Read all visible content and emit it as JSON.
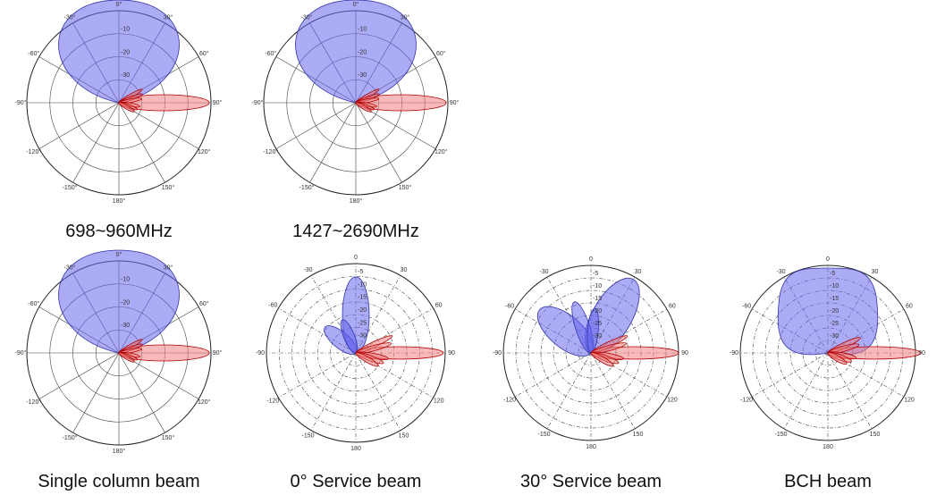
{
  "plots": [
    {
      "caption": "698~960MHz",
      "angle_labels": [
        "0°",
        "30°",
        "60°",
        "90°",
        "120°",
        "150°",
        "180°",
        "-150°",
        "-120°",
        "-90°",
        "-60°",
        "-30°"
      ],
      "radial_labels": [
        "-10",
        "-20",
        "-30"
      ]
    },
    {
      "caption": "1427~2690MHz",
      "angle_labels": [
        "0°",
        "30°",
        "60°",
        "90°",
        "120°",
        "150°",
        "180°",
        "-150°",
        "-120°",
        "-90°",
        "-60°",
        "-30°"
      ],
      "radial_labels": [
        "-10",
        "-20",
        "-30"
      ]
    },
    {
      "caption": "Single column beam",
      "angle_labels": [
        "0°",
        "30°",
        "60°",
        "90°",
        "120°",
        "150°",
        "180°",
        "-150°",
        "-120°",
        "-90°",
        "-60°",
        "-30°"
      ],
      "radial_labels": [
        "-10",
        "-20",
        "-30"
      ]
    },
    {
      "caption": "0° Service beam",
      "angle_labels": [
        "0",
        "30",
        "60",
        "90",
        "120",
        "150",
        "180",
        "-150",
        "-120",
        "-90",
        "-60",
        "-30"
      ],
      "radial_labels": [
        "-5",
        "-10",
        "-15",
        "-20",
        "-25",
        "-30"
      ]
    },
    {
      "caption": "30° Service beam",
      "angle_labels": [
        "0",
        "30",
        "60",
        "90",
        "120",
        "150",
        "180",
        "-150",
        "-120",
        "-90",
        "-60",
        "-30"
      ],
      "radial_labels": [
        "-5",
        "-10",
        "-15",
        "-20",
        "-25",
        "-30"
      ]
    },
    {
      "caption": "BCH beam",
      "angle_labels": [
        "0",
        "30",
        "60",
        "90",
        "120",
        "150",
        "180",
        "-150",
        "-120",
        "-90",
        "-60",
        "-30"
      ],
      "radial_labels": [
        "-5",
        "-10",
        "-15",
        "-20",
        "-25",
        "-30"
      ]
    }
  ]
}
